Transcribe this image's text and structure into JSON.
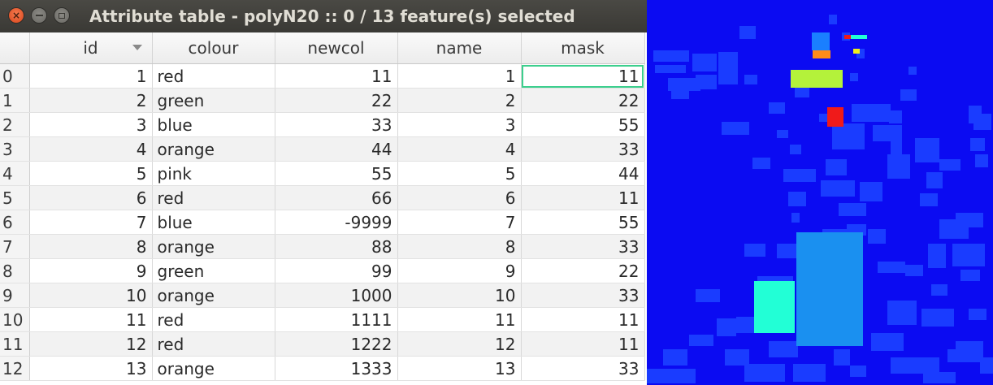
{
  "window": {
    "title": "Attribute table - polyN20 :: 0 / 13 feature(s) selected",
    "close_glyph": "×"
  },
  "table": {
    "columns": [
      "id",
      "colour",
      "newcol",
      "name",
      "mask"
    ],
    "sorted_column": "id",
    "current_cell": {
      "row": 0,
      "column": "mask"
    },
    "rows": [
      {
        "header": "0",
        "id": "1",
        "colour": "red",
        "newcol": "11",
        "name": "1",
        "mask": "11"
      },
      {
        "header": "1",
        "id": "2",
        "colour": "green",
        "newcol": "22",
        "name": "2",
        "mask": "22"
      },
      {
        "header": "2",
        "id": "3",
        "colour": "blue",
        "newcol": "33",
        "name": "3",
        "mask": "55"
      },
      {
        "header": "3",
        "id": "4",
        "colour": "orange",
        "newcol": "44",
        "name": "4",
        "mask": "33"
      },
      {
        "header": "4",
        "id": "5",
        "colour": "pink",
        "newcol": "55",
        "name": "5",
        "mask": "44"
      },
      {
        "header": "5",
        "id": "6",
        "colour": "red",
        "newcol": "66",
        "name": "6",
        "mask": "11"
      },
      {
        "header": "6",
        "id": "7",
        "colour": "blue",
        "newcol": "-9999",
        "name": "7",
        "mask": "55"
      },
      {
        "header": "7",
        "id": "8",
        "colour": "orange",
        "newcol": "88",
        "name": "8",
        "mask": "33"
      },
      {
        "header": "8",
        "id": "9",
        "colour": "green",
        "newcol": "99",
        "name": "9",
        "mask": "22"
      },
      {
        "header": "9",
        "id": "10",
        "colour": "orange",
        "newcol": "1000",
        "name": "10",
        "mask": "33"
      },
      {
        "header": "10",
        "id": "11",
        "colour": "red",
        "newcol": "1111",
        "name": "11",
        "mask": "11"
      },
      {
        "header": "11",
        "id": "12",
        "colour": "red",
        "newcol": "1222",
        "name": "12",
        "mask": "11"
      },
      {
        "header": "12",
        "id": "13",
        "colour": "orange",
        "newcol": "1333",
        "name": "13",
        "mask": "33"
      }
    ]
  },
  "map": {
    "background_color": "#0b0bf2",
    "palette": {
      "dark_blue": "#0b0bf2",
      "mid_blue": "#1a3cff",
      "light_blue": "#1a7fff",
      "azure": "#1a90f0",
      "cyan": "#22ffd6",
      "lime": "#b4f23a",
      "orange": "#ff8c1a",
      "red": "#f01a1a",
      "yellow": "#f0f01a"
    }
  }
}
